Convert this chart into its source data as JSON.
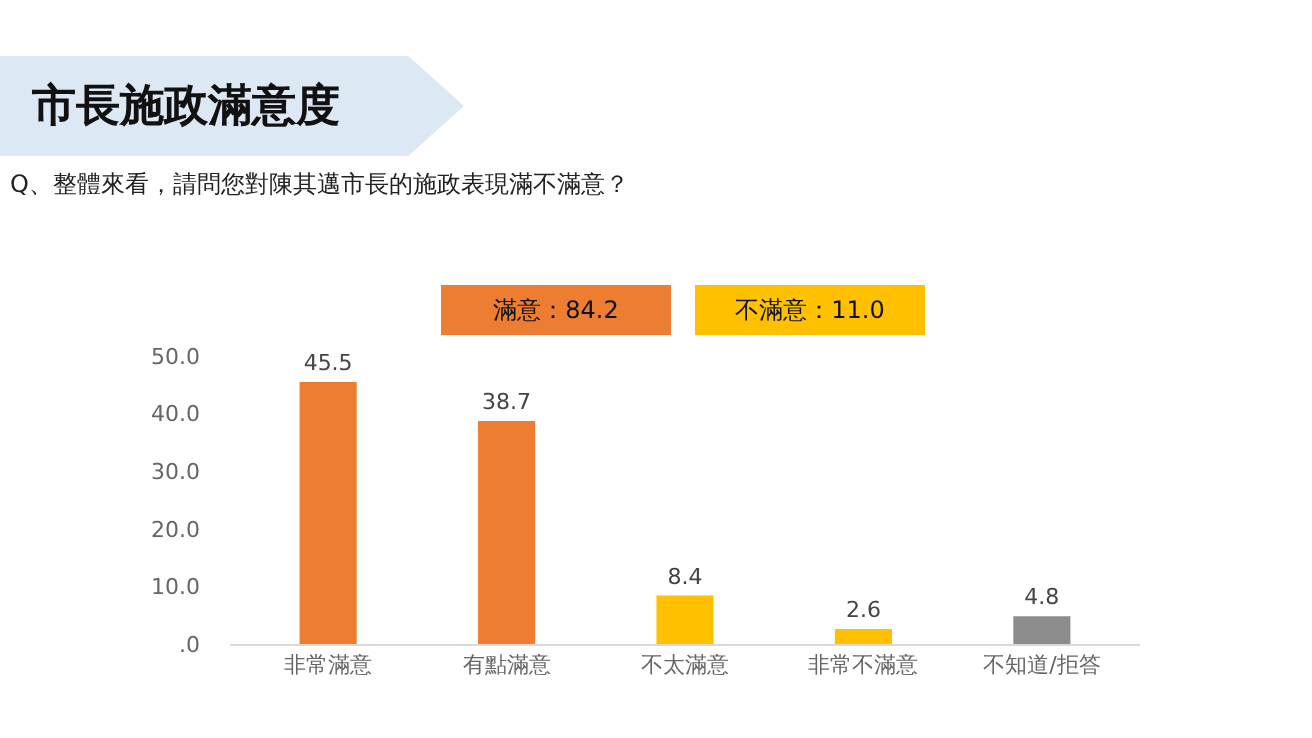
{
  "chart_data": {
    "type": "bar",
    "title": "市長施政滿意度",
    "subtitle": "Q、整體來看，請問您對陳其邁市長的施政表現滿不滿意？",
    "categories": [
      "非常滿意",
      "有點滿意",
      "不太滿意",
      "非常不滿意",
      "不知道/拒答"
    ],
    "values": [
      45.5,
      38.7,
      8.4,
      2.6,
      4.8
    ],
    "colors": [
      "#ed7d31",
      "#ed7d31",
      "#ffc000",
      "#ffc000",
      "#8c8c8c"
    ],
    "ylim": [
      0,
      50
    ],
    "yticks": [
      {
        "value": 0,
        "label": ".0"
      },
      {
        "value": 10,
        "label": "10.0"
      },
      {
        "value": 20,
        "label": "20.0"
      },
      {
        "value": 30,
        "label": "30.0"
      },
      {
        "value": 40,
        "label": "40.0"
      },
      {
        "value": 50,
        "label": "50.0"
      }
    ],
    "annotations": [
      "滿意：84.2",
      "不滿意：11.0"
    ],
    "data_labels": true,
    "grid": false,
    "legend": false
  }
}
